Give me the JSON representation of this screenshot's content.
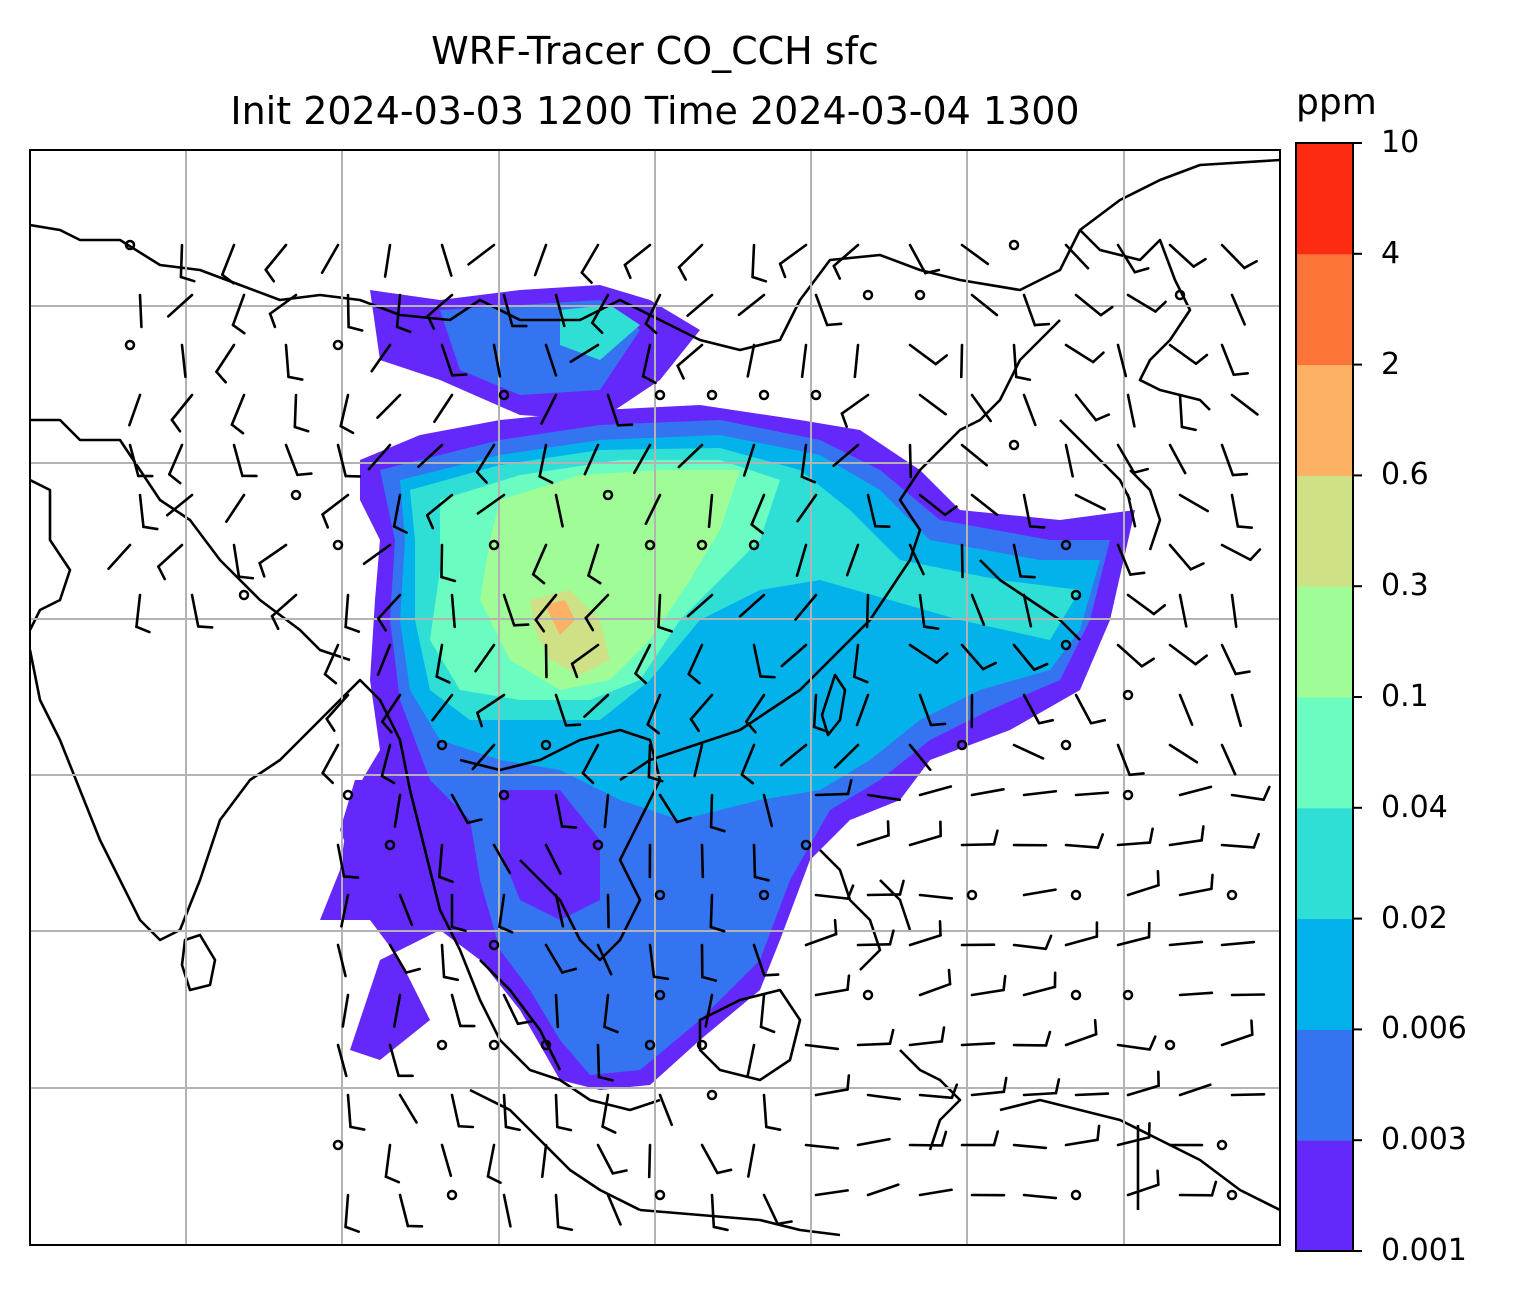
{
  "title": {
    "line1": "WRF-Tracer CO_CCH sfc",
    "line2": "Init 2024-03-03 1200 Time 2024-03-04 1300"
  },
  "colorbar": {
    "unit": "ppm",
    "ticks": [
      "0.001",
      "0.003",
      "0.006",
      "0.02",
      "0.04",
      "0.1",
      "0.3",
      "0.6",
      "2",
      "4",
      "10"
    ],
    "colors": [
      "#6528fb",
      "#3474f1",
      "#03b2ea",
      "#2fdfd6",
      "#6afcc0",
      "#9ffc96",
      "#cfe186",
      "#fdb164",
      "#fd7439",
      "#fe2b13"
    ]
  },
  "map": {
    "gridlines": true,
    "coastlines": true,
    "wind_barbs": true
  }
}
